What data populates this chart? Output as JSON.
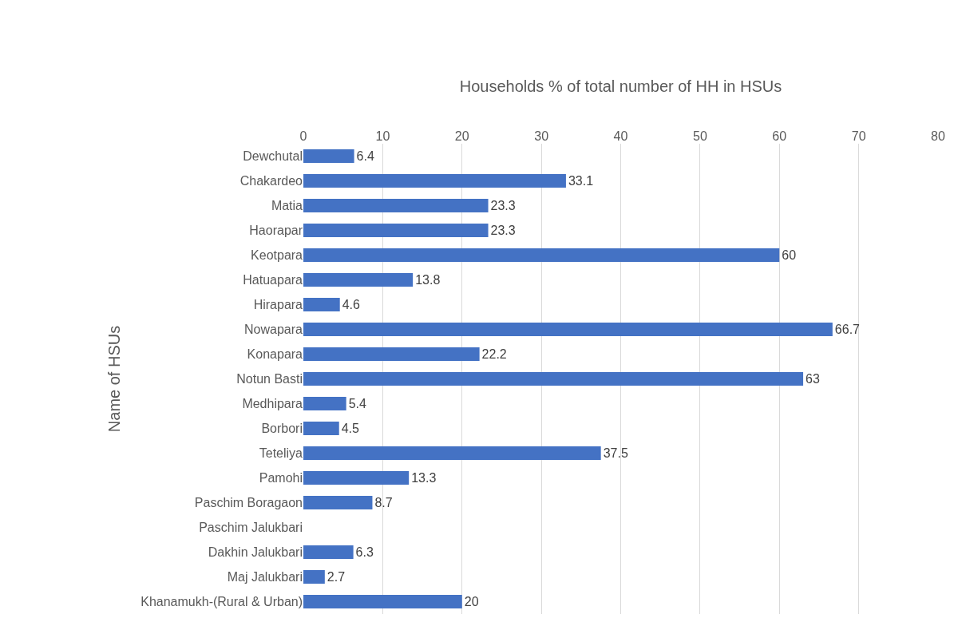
{
  "chart_data": {
    "type": "bar",
    "orientation": "horizontal",
    "xlabel": "Households % of total number of HH in HSUs",
    "ylabel": "Name of HSUs",
    "categories": [
      "Dewchutal",
      "Chakardeo",
      "Matia",
      "Haorapar",
      "Keotpara",
      "Hatuapara",
      "Hirapara",
      "Nowapara",
      "Konapara",
      "Notun Basti",
      "Medhipara",
      "Borbori",
      "Teteliya",
      "Pamohi",
      "Paschim Boragaon",
      "Paschim Jalukbari",
      "Dakhin Jalukbari",
      "Maj Jalukbari",
      "Khanamukh-(Rural & Urban)"
    ],
    "values": [
      6.4,
      33.1,
      23.3,
      23.3,
      60,
      13.8,
      4.6,
      66.7,
      22.2,
      63,
      5.4,
      4.5,
      37.5,
      13.3,
      8.7,
      null,
      6.3,
      2.7,
      20
    ],
    "color": "#4472c4",
    "xlim": [
      0,
      80
    ],
    "xticks": [
      0,
      10,
      20,
      30,
      40,
      50,
      60,
      70,
      80
    ],
    "grid": "x",
    "data_labels": true,
    "legend": false
  }
}
